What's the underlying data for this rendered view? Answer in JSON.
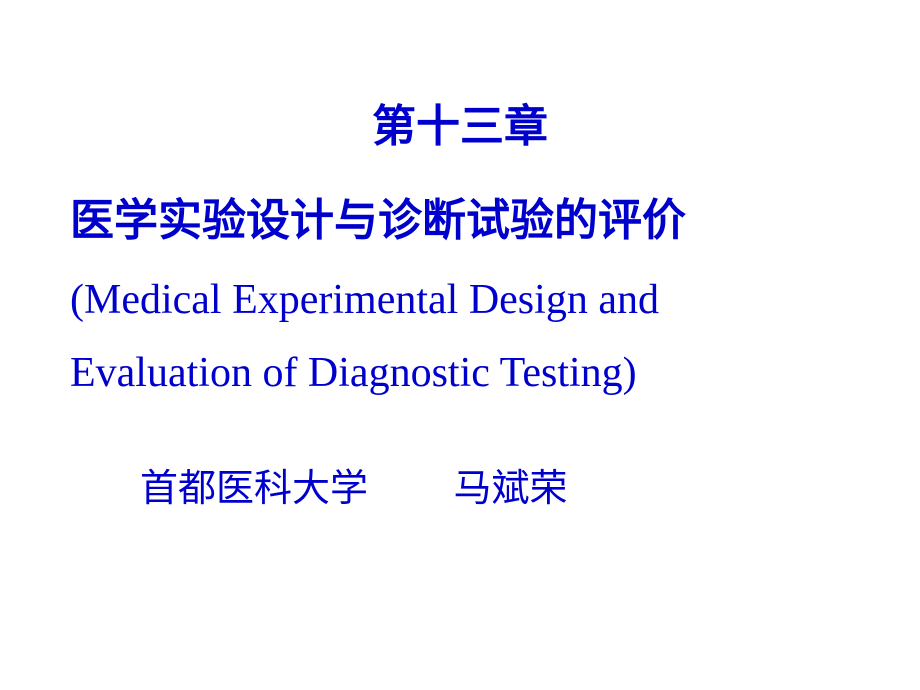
{
  "slide": {
    "chapter_number": "第十三章",
    "title_cn": "医学实验设计与诊断试验的评价",
    "title_en_line1": "(Medical Experimental Design and",
    "title_en_line2": "Evaluation of Diagnostic Testing)",
    "affiliation": "首都医科大学         马斌荣"
  },
  "style": {
    "text_color": "#0000cc",
    "background_color": "#ffffff",
    "chapter_fontsize": 44,
    "title_cn_fontsize": 44,
    "title_en_fontsize": 42,
    "affiliation_fontsize": 38
  }
}
